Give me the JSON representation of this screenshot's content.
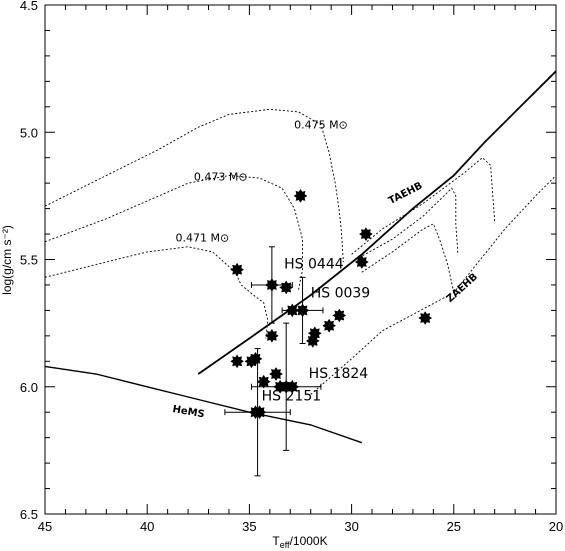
{
  "chart_data": {
    "type": "scatter",
    "title": "",
    "xlabel": "T",
    "xlabel_sub": "eff",
    "xlabel_rest": "/1000K",
    "ylabel": "log(g/cm s⁻²)",
    "xlim": [
      45,
      20
    ],
    "ylim": [
      6.5,
      4.5
    ],
    "x_ticks": [
      45,
      40,
      35,
      30,
      25,
      20
    ],
    "x_tick_labels": [
      "45",
      "40",
      "35",
      "30",
      "25",
      "20"
    ],
    "y_ticks": [
      4.5,
      5.0,
      5.5,
      6.0,
      6.5
    ],
    "y_tick_labels": [
      "4.5",
      "5.0",
      "5.5",
      "6.0",
      "6.5"
    ],
    "grid": false,
    "points": [
      {
        "x": 32.5,
        "y": 5.25
      },
      {
        "x": 29.3,
        "y": 5.4
      },
      {
        "x": 29.5,
        "y": 5.51
      },
      {
        "x": 35.6,
        "y": 5.54
      },
      {
        "x": 33.9,
        "y": 5.6
      },
      {
        "x": 33.2,
        "y": 5.61
      },
      {
        "x": 32.9,
        "y": 5.7
      },
      {
        "x": 32.4,
        "y": 5.7
      },
      {
        "x": 30.6,
        "y": 5.72
      },
      {
        "x": 31.1,
        "y": 5.76
      },
      {
        "x": 26.4,
        "y": 5.73
      },
      {
        "x": 31.8,
        "y": 5.79
      },
      {
        "x": 31.9,
        "y": 5.82
      },
      {
        "x": 33.9,
        "y": 5.8
      },
      {
        "x": 35.6,
        "y": 5.9
      },
      {
        "x": 34.9,
        "y": 5.9
      },
      {
        "x": 34.7,
        "y": 5.89
      },
      {
        "x": 33.7,
        "y": 5.95
      },
      {
        "x": 34.3,
        "y": 5.98
      },
      {
        "x": 33.5,
        "y": 6.0
      },
      {
        "x": 33.2,
        "y": 6.0
      },
      {
        "x": 32.9,
        "y": 6.0
      },
      {
        "x": 34.7,
        "y": 6.1
      },
      {
        "x": 34.5,
        "y": 6.1
      }
    ],
    "error_bars": [
      {
        "x": 33.9,
        "y": 5.6,
        "xerr": 1.0,
        "yerr": 0.15
      },
      {
        "x": 32.4,
        "y": 5.7,
        "xerr": 1.0,
        "yerr": 0.13
      },
      {
        "x": 33.2,
        "y": 6.0,
        "xerr": 1.7,
        "yerr": 0.25
      },
      {
        "x": 34.6,
        "y": 6.1,
        "xerr": 1.6,
        "yerr": 0.25
      }
    ],
    "labels": [
      {
        "text": "HS 0444",
        "x": 33.3,
        "y": 5.535
      },
      {
        "text": "HS 0039",
        "x": 32.0,
        "y": 5.65
      },
      {
        "text": "HS 1824",
        "x": 32.1,
        "y": 5.965
      },
      {
        "text": "HS 2151",
        "x": 34.4,
        "y": 6.055
      }
    ],
    "lines": [
      {
        "name": "TAEHB",
        "style": "solid",
        "label_x": 27.3,
        "label_y": 5.25,
        "label_rotate": -27,
        "points": [
          [
            37.5,
            5.95
          ],
          [
            35,
            5.81
          ],
          [
            32,
            5.64
          ],
          [
            29.5,
            5.48
          ],
          [
            27,
            5.3
          ],
          [
            25,
            5.17
          ],
          [
            23.5,
            5.04
          ],
          [
            22,
            4.92
          ],
          [
            20,
            4.76
          ]
        ]
      },
      {
        "name": "ZAEHB",
        "style": "dotted",
        "label_x": 24.5,
        "label_y": 5.62,
        "label_rotate": -42,
        "points": [
          [
            32,
            6.03
          ],
          [
            30,
            5.89
          ],
          [
            28.5,
            5.78
          ],
          [
            25,
            5.63
          ],
          [
            22.5,
            5.38
          ],
          [
            21,
            5.25
          ],
          [
            20,
            5.17
          ]
        ]
      },
      {
        "name": "HeMS",
        "style": "solid",
        "label_x": 38.0,
        "label_y": 6.11,
        "label_rotate": 10,
        "points": [
          [
            45,
            5.92
          ],
          [
            42.5,
            5.95
          ],
          [
            40,
            6.0
          ],
          [
            37.5,
            6.05
          ],
          [
            35,
            6.1
          ],
          [
            32,
            6.15
          ],
          [
            29.5,
            6.22
          ]
        ]
      },
      {
        "name": "0.471 M⊙",
        "style": "dotted",
        "label_x": 37.3,
        "label_y": 5.43,
        "label_rotate": 0,
        "points": [
          [
            45,
            5.57
          ],
          [
            42,
            5.51
          ],
          [
            40,
            5.47
          ],
          [
            38,
            5.45
          ],
          [
            36.8,
            5.47
          ],
          [
            35.7,
            5.55
          ],
          [
            35.4,
            5.6
          ],
          [
            34.8,
            5.64
          ],
          [
            34.3,
            5.67
          ],
          [
            34.1,
            5.74
          ],
          [
            34.2,
            5.81
          ]
        ]
      },
      {
        "name": "0.473 M⊙",
        "style": "dotted",
        "label_x": 36.4,
        "label_y": 5.19,
        "label_rotate": 0,
        "points": [
          [
            45,
            5.43
          ],
          [
            42,
            5.34
          ],
          [
            40,
            5.27
          ],
          [
            38,
            5.2
          ],
          [
            36,
            5.17
          ],
          [
            34.5,
            5.18
          ],
          [
            33.4,
            5.22
          ],
          [
            32.8,
            5.3
          ],
          [
            32.4,
            5.42
          ],
          [
            32.4,
            5.54
          ],
          [
            32.6,
            5.62
          ]
        ]
      },
      {
        "name": "0.475 M⊙",
        "style": "dotted",
        "label_x": 31.5,
        "label_y": 4.985,
        "label_rotate": 0,
        "points": [
          [
            45,
            5.29
          ],
          [
            42,
            5.17
          ],
          [
            39.5,
            5.07
          ],
          [
            37.5,
            4.98
          ],
          [
            36,
            4.93
          ],
          [
            34,
            4.91
          ],
          [
            32.6,
            4.92
          ],
          [
            31.5,
            4.97
          ],
          [
            31.1,
            5.08
          ],
          [
            30.8,
            5.2
          ],
          [
            30.6,
            5.31
          ],
          [
            30.5,
            5.39
          ],
          [
            30.4,
            5.51
          ]
        ]
      },
      {
        "name": "",
        "style": "dotted",
        "label_x": null,
        "label_y": null,
        "label_rotate": 0,
        "points": [
          [
            30,
            5.48
          ],
          [
            28.5,
            5.38
          ],
          [
            26.5,
            5.28
          ],
          [
            24.5,
            5.16
          ],
          [
            23.6,
            5.1
          ],
          [
            23.2,
            5.13
          ],
          [
            23.1,
            5.24
          ],
          [
            23.0,
            5.35
          ]
        ]
      },
      {
        "name": "",
        "style": "dotted",
        "label_x": null,
        "label_y": null,
        "label_rotate": 0,
        "points": [
          [
            29.8,
            5.5
          ],
          [
            28,
            5.42
          ],
          [
            26.5,
            5.33
          ],
          [
            25.1,
            5.22
          ],
          [
            24.9,
            5.25
          ],
          [
            24.9,
            5.36
          ],
          [
            24.8,
            5.48
          ]
        ]
      },
      {
        "name": "",
        "style": "dotted",
        "label_x": null,
        "label_y": null,
        "label_rotate": 0,
        "points": [
          [
            29.5,
            5.55
          ],
          [
            28,
            5.47
          ],
          [
            26.5,
            5.38
          ],
          [
            26.0,
            5.36
          ],
          [
            25.7,
            5.42
          ],
          [
            25.3,
            5.52
          ],
          [
            25.0,
            5.63
          ]
        ]
      }
    ]
  }
}
